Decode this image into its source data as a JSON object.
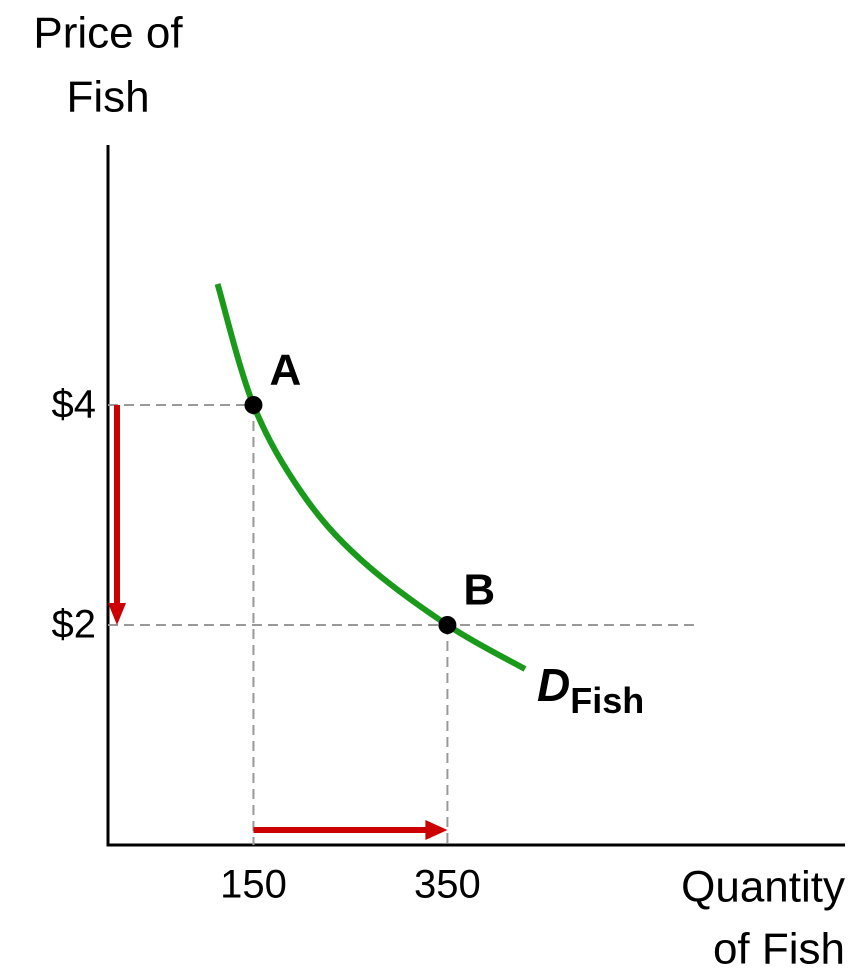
{
  "chart_data": {
    "type": "line",
    "y_label": [
      "Price of",
      "Fish"
    ],
    "x_label": [
      "Quantity",
      "of Fish"
    ],
    "xlim": [
      0,
      760
    ],
    "ylim": [
      0,
      6.4
    ],
    "xticks": [
      150,
      350
    ],
    "yticks": [
      {
        "value": 2,
        "label": "$2"
      },
      {
        "value": 4,
        "label": "$4"
      }
    ],
    "series": [
      {
        "name": "D",
        "name_sub": "Fish",
        "color": "#1a9a1a",
        "x": [
          113,
          150,
          200,
          260,
          350,
          430
        ],
        "values": [
          5.1,
          4,
          3.2,
          2.6,
          2,
          1.6
        ]
      }
    ],
    "points": [
      {
        "label": "A",
        "x": 150,
        "y": 4
      },
      {
        "label": "B",
        "x": 350,
        "y": 2
      }
    ],
    "arrow_color": "#cc0000"
  }
}
